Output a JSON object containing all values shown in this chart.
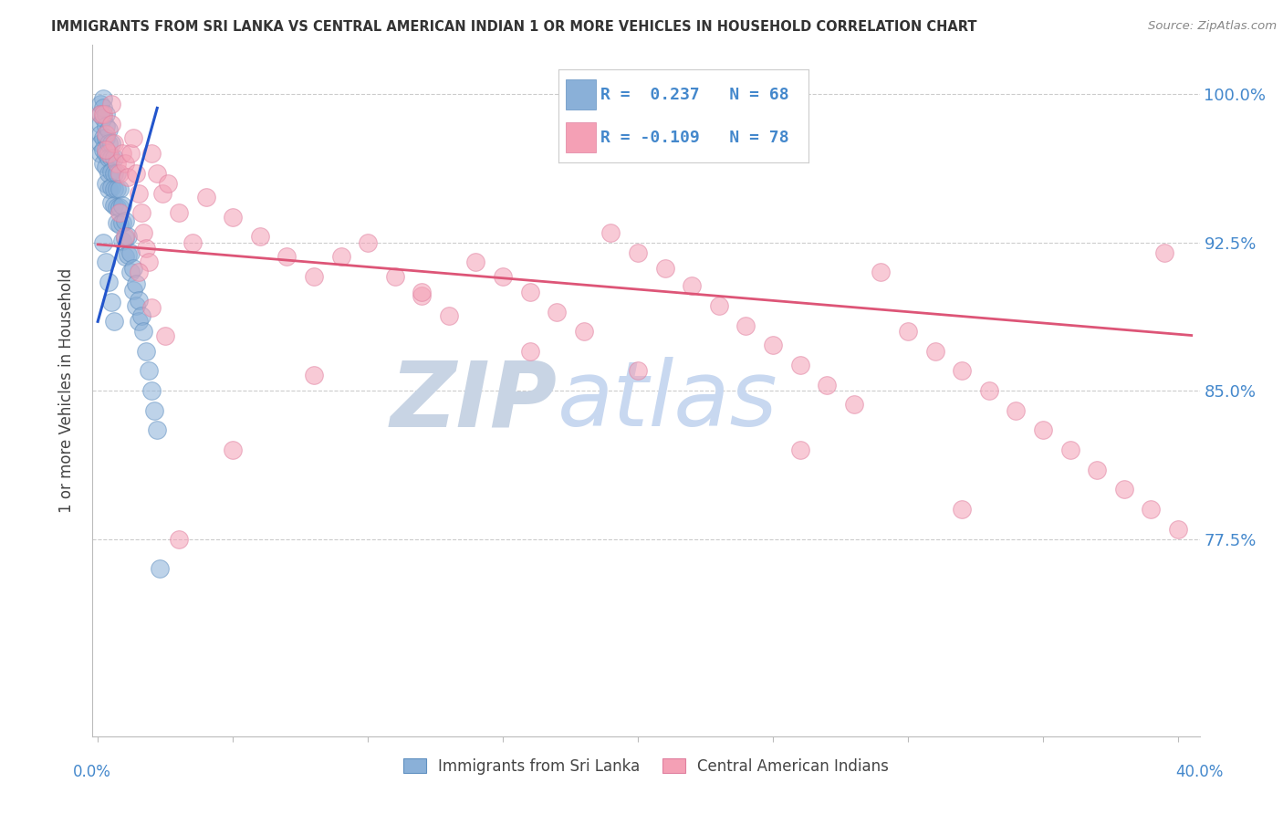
{
  "title": "IMMIGRANTS FROM SRI LANKA VS CENTRAL AMERICAN INDIAN 1 OR MORE VEHICLES IN HOUSEHOLD CORRELATION CHART",
  "source": "Source: ZipAtlas.com",
  "ylabel": "1 or more Vehicles in Household",
  "ytick_labels": [
    "100.0%",
    "92.5%",
    "85.0%",
    "77.5%"
  ],
  "ytick_values": [
    1.0,
    0.925,
    0.85,
    0.775
  ],
  "ylim": [
    0.675,
    1.025
  ],
  "xlim": [
    -0.002,
    0.408
  ],
  "blue_R": 0.237,
  "blue_N": 68,
  "pink_R": -0.109,
  "pink_N": 78,
  "blue_color": "#8ab0d8",
  "pink_color": "#f4a0b5",
  "blue_edge_color": "#6090c0",
  "pink_edge_color": "#e080a0",
  "blue_line_color": "#2255cc",
  "pink_line_color": "#dd5577",
  "legend_blue_label": "Immigrants from Sri Lanka",
  "legend_pink_label": "Central American Indians",
  "background_color": "#ffffff",
  "grid_color": "#cccccc",
  "axis_label_color": "#4488cc",
  "title_color": "#333333",
  "watermark_zip_color": "#c8d4e4",
  "watermark_atlas_color": "#c8d8f0",
  "blue_line_x0": 0.0,
  "blue_line_x1": 0.022,
  "blue_line_y0": 0.885,
  "blue_line_y1": 0.993,
  "pink_line_x0": 0.0,
  "pink_line_x1": 0.405,
  "pink_line_y0": 0.924,
  "pink_line_y1": 0.878,
  "blue_x": [
    0.001,
    0.001,
    0.001,
    0.001,
    0.001,
    0.001,
    0.002,
    0.002,
    0.002,
    0.002,
    0.002,
    0.002,
    0.003,
    0.003,
    0.003,
    0.003,
    0.003,
    0.003,
    0.004,
    0.004,
    0.004,
    0.004,
    0.004,
    0.005,
    0.005,
    0.005,
    0.005,
    0.005,
    0.006,
    0.006,
    0.006,
    0.006,
    0.007,
    0.007,
    0.007,
    0.007,
    0.008,
    0.008,
    0.008,
    0.009,
    0.009,
    0.009,
    0.01,
    0.01,
    0.01,
    0.011,
    0.011,
    0.012,
    0.012,
    0.013,
    0.013,
    0.014,
    0.014,
    0.015,
    0.015,
    0.016,
    0.017,
    0.018,
    0.019,
    0.02,
    0.021,
    0.022,
    0.023,
    0.002,
    0.003,
    0.004,
    0.005,
    0.006
  ],
  "blue_y": [
    0.995,
    0.99,
    0.985,
    0.98,
    0.975,
    0.97,
    0.998,
    0.993,
    0.988,
    0.978,
    0.972,
    0.965,
    0.99,
    0.984,
    0.978,
    0.97,
    0.963,
    0.955,
    0.982,
    0.975,
    0.968,
    0.96,
    0.952,
    0.975,
    0.968,
    0.961,
    0.953,
    0.945,
    0.968,
    0.96,
    0.952,
    0.944,
    0.96,
    0.952,
    0.943,
    0.935,
    0.952,
    0.943,
    0.934,
    0.944,
    0.935,
    0.926,
    0.936,
    0.927,
    0.918,
    0.928,
    0.919,
    0.92,
    0.91,
    0.912,
    0.901,
    0.904,
    0.893,
    0.896,
    0.885,
    0.888,
    0.88,
    0.87,
    0.86,
    0.85,
    0.84,
    0.83,
    0.76,
    0.925,
    0.915,
    0.905,
    0.895,
    0.885
  ],
  "pink_x": [
    0.001,
    0.002,
    0.003,
    0.004,
    0.005,
    0.006,
    0.007,
    0.008,
    0.009,
    0.01,
    0.011,
    0.012,
    0.013,
    0.014,
    0.015,
    0.016,
    0.017,
    0.018,
    0.019,
    0.02,
    0.022,
    0.024,
    0.026,
    0.03,
    0.035,
    0.04,
    0.05,
    0.06,
    0.07,
    0.08,
    0.09,
    0.1,
    0.11,
    0.12,
    0.13,
    0.14,
    0.15,
    0.16,
    0.17,
    0.18,
    0.19,
    0.2,
    0.21,
    0.22,
    0.23,
    0.24,
    0.25,
    0.26,
    0.27,
    0.28,
    0.29,
    0.3,
    0.31,
    0.32,
    0.33,
    0.34,
    0.35,
    0.36,
    0.37,
    0.38,
    0.39,
    0.4,
    0.003,
    0.005,
    0.008,
    0.01,
    0.015,
    0.02,
    0.025,
    0.03,
    0.05,
    0.08,
    0.12,
    0.16,
    0.2,
    0.26,
    0.32,
    0.395
  ],
  "pink_y": [
    0.99,
    0.99,
    0.98,
    0.97,
    0.995,
    0.975,
    0.965,
    0.96,
    0.97,
    0.965,
    0.958,
    0.97,
    0.978,
    0.96,
    0.95,
    0.94,
    0.93,
    0.922,
    0.915,
    0.97,
    0.96,
    0.95,
    0.955,
    0.94,
    0.925,
    0.948,
    0.938,
    0.928,
    0.918,
    0.908,
    0.918,
    0.925,
    0.908,
    0.898,
    0.888,
    0.915,
    0.908,
    0.9,
    0.89,
    0.88,
    0.93,
    0.92,
    0.912,
    0.903,
    0.893,
    0.883,
    0.873,
    0.863,
    0.853,
    0.843,
    0.91,
    0.88,
    0.87,
    0.86,
    0.85,
    0.84,
    0.83,
    0.82,
    0.81,
    0.8,
    0.79,
    0.78,
    0.972,
    0.985,
    0.94,
    0.928,
    0.91,
    0.892,
    0.878,
    0.775,
    0.82,
    0.858,
    0.9,
    0.87,
    0.86,
    0.82,
    0.79,
    0.92
  ]
}
